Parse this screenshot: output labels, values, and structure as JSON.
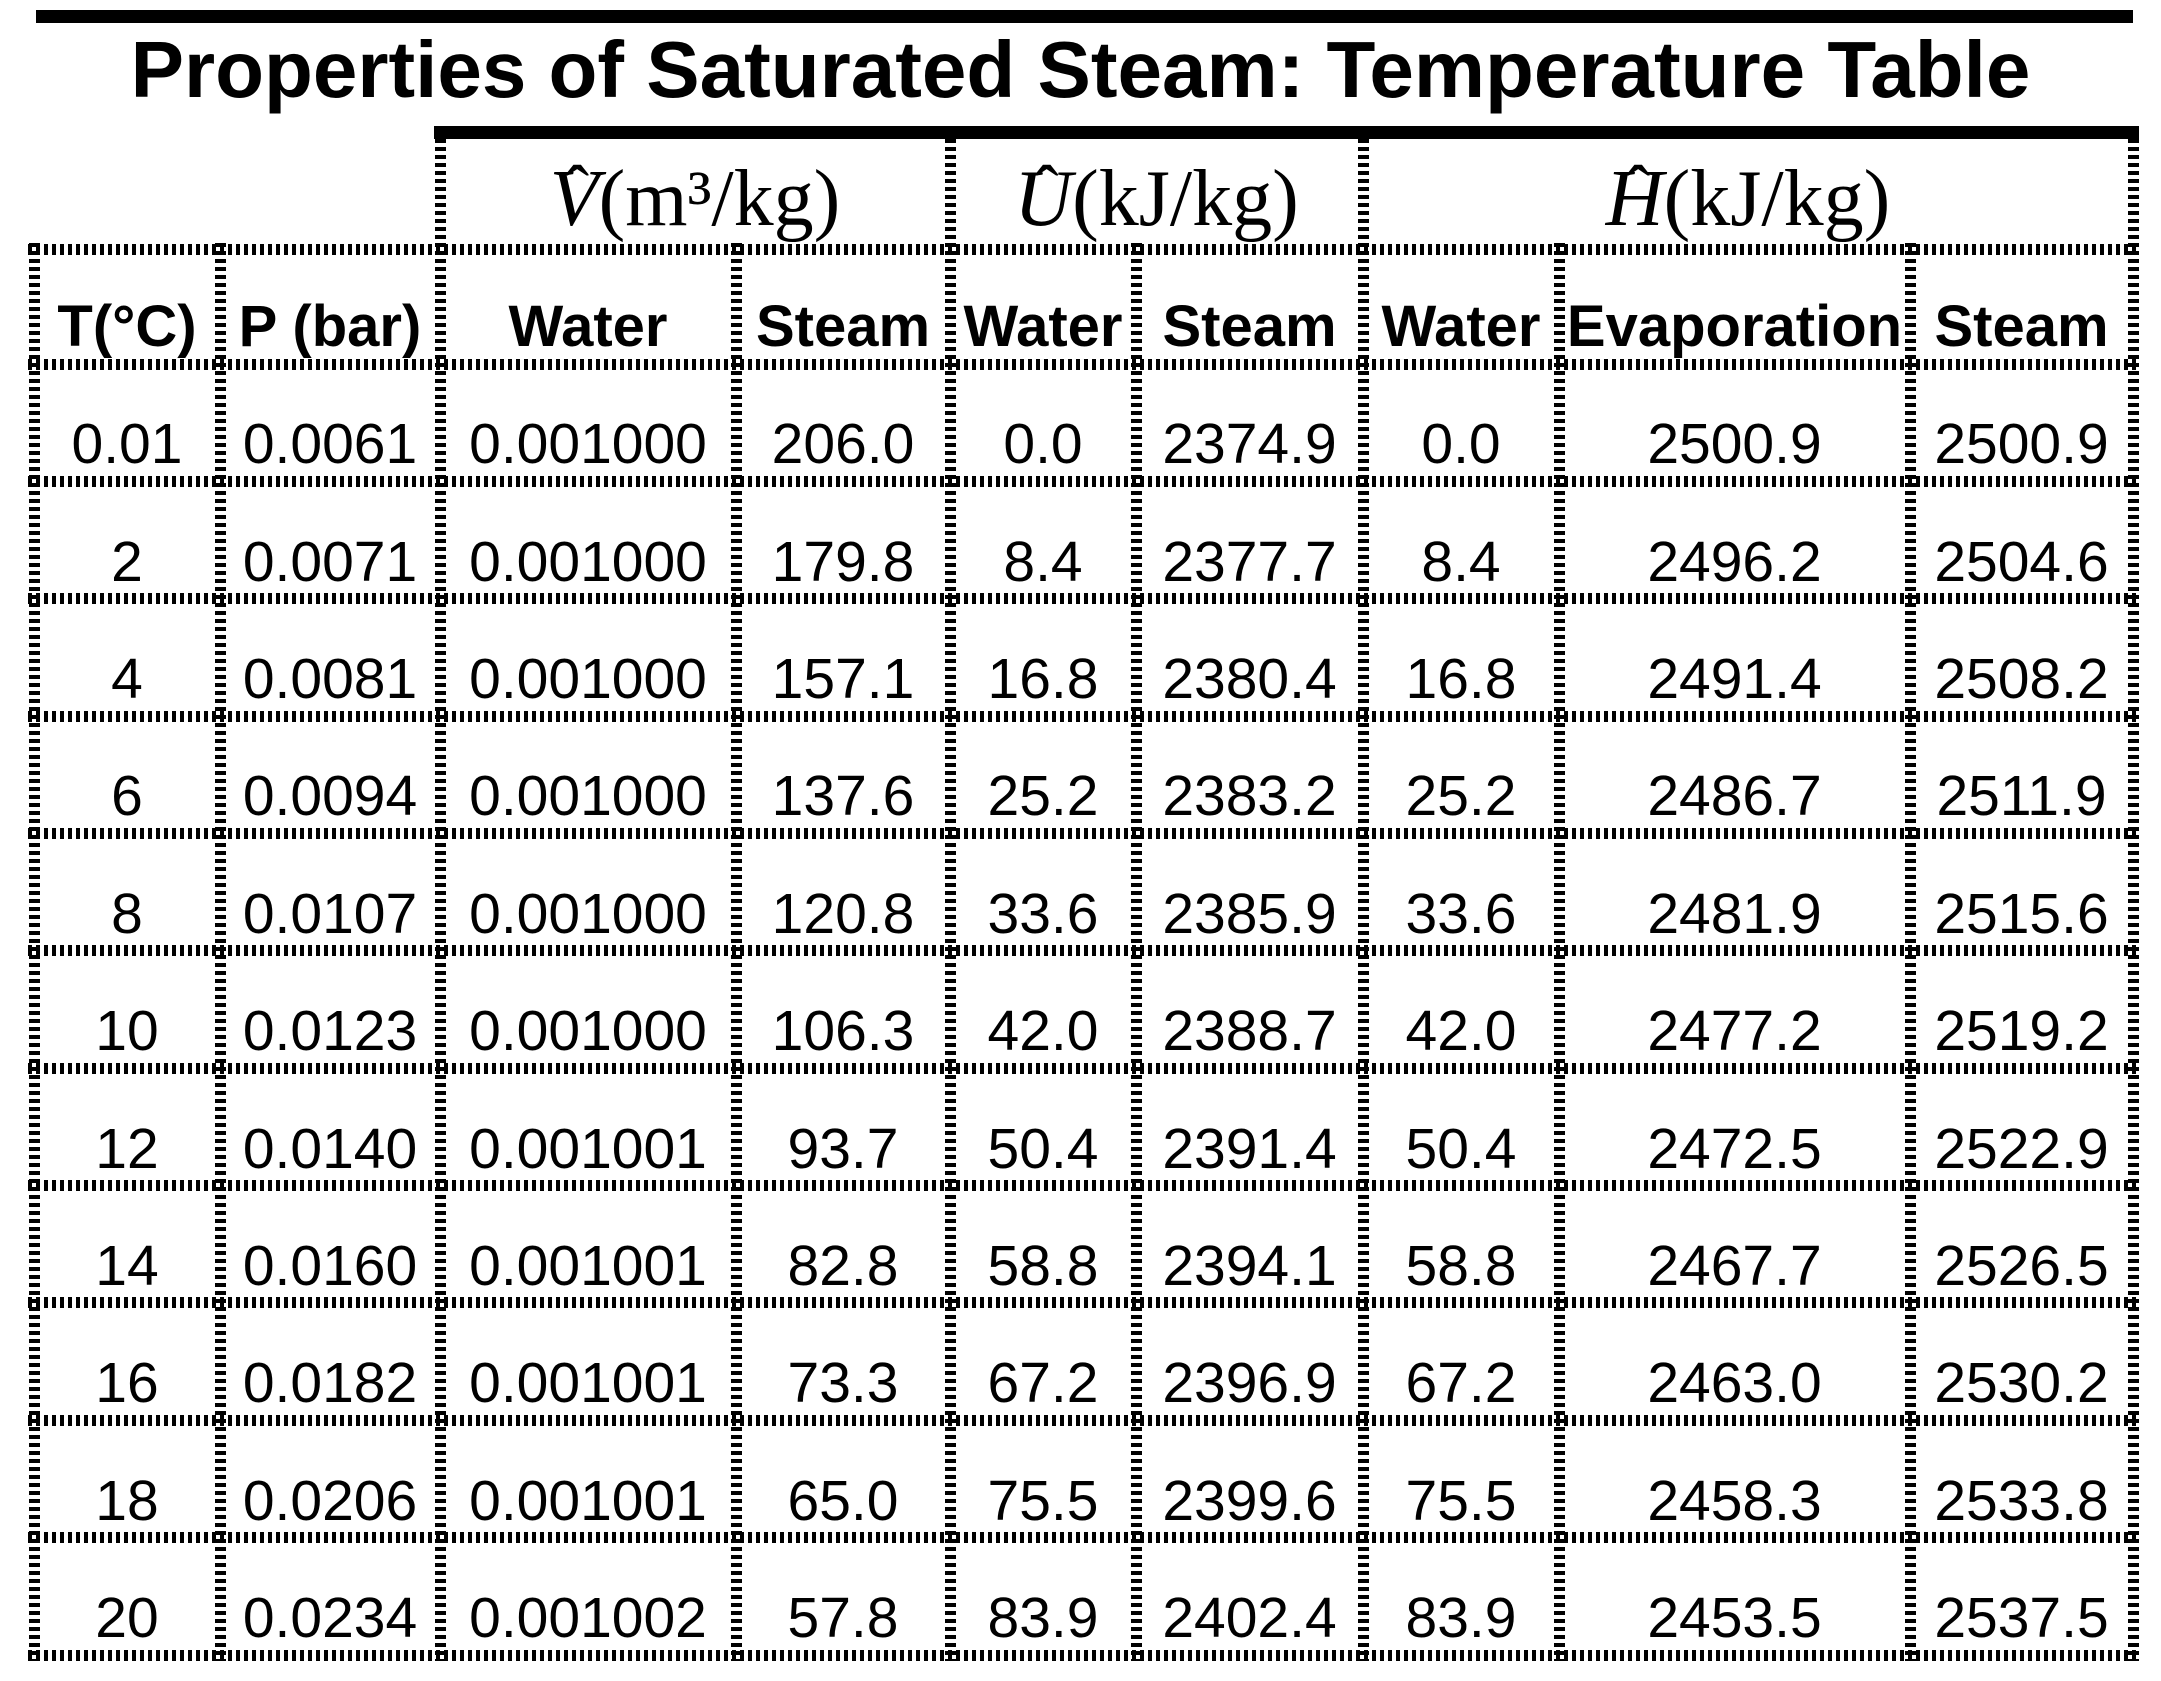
{
  "title": "Properties of Saturated Steam: Temperature Table",
  "supercolumns": [
    {
      "hat": "ˆ",
      "symbol": "V",
      "unit": "(m³/kg)"
    },
    {
      "hat": "ˆ",
      "symbol": "U",
      "unit": "(kJ/kg)"
    },
    {
      "hat": "ˆ",
      "symbol": "H",
      "unit": "(kJ/kg)"
    }
  ],
  "columns": [
    "T(°C)",
    "P (bar)",
    "Water",
    "Steam",
    "Water",
    "Steam",
    "Water",
    "Evaporation",
    "Steam"
  ],
  "rows": [
    [
      "0.01",
      "0.0061",
      "0.001000",
      "206.0",
      "0.0",
      "2374.9",
      "0.0",
      "2500.9",
      "2500.9"
    ],
    [
      "2",
      "0.0071",
      "0.001000",
      "179.8",
      "8.4",
      "2377.7",
      "8.4",
      "2496.2",
      "2504.6"
    ],
    [
      "4",
      "0.0081",
      "0.001000",
      "157.1",
      "16.8",
      "2380.4",
      "16.8",
      "2491.4",
      "2508.2"
    ],
    [
      "6",
      "0.0094",
      "0.001000",
      "137.6",
      "25.2",
      "2383.2",
      "25.2",
      "2486.7",
      "2511.9"
    ],
    [
      "8",
      "0.0107",
      "0.001000",
      "120.8",
      "33.6",
      "2385.9",
      "33.6",
      "2481.9",
      "2515.6"
    ],
    [
      "10",
      "0.0123",
      "0.001000",
      "106.3",
      "42.0",
      "2388.7",
      "42.0",
      "2477.2",
      "2519.2"
    ],
    [
      "12",
      "0.0140",
      "0.001001",
      "93.7",
      "50.4",
      "2391.4",
      "50.4",
      "2472.5",
      "2522.9"
    ],
    [
      "14",
      "0.0160",
      "0.001001",
      "82.8",
      "58.8",
      "2394.1",
      "58.8",
      "2467.7",
      "2526.5"
    ],
    [
      "16",
      "0.0182",
      "0.001001",
      "73.3",
      "67.2",
      "2396.9",
      "67.2",
      "2463.0",
      "2530.2"
    ],
    [
      "18",
      "0.0206",
      "0.001001",
      "65.0",
      "75.5",
      "2399.6",
      "75.5",
      "2458.3",
      "2533.8"
    ],
    [
      "20",
      "0.0234",
      "0.001002",
      "57.8",
      "83.9",
      "2402.4",
      "83.9",
      "2453.5",
      "2537.5"
    ]
  ],
  "colors": {
    "ink": "#000000",
    "paper": "#ffffff"
  }
}
